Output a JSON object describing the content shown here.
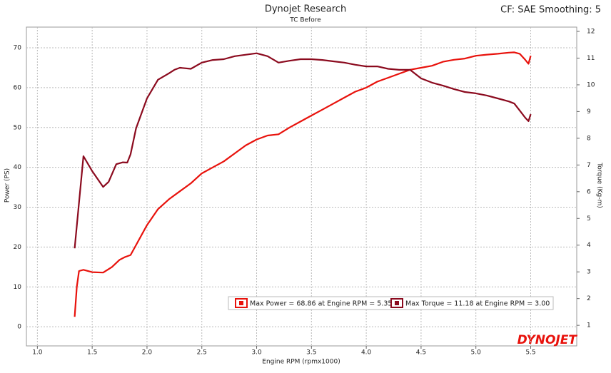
{
  "chart_data": {
    "type": "line",
    "title": "Dynojet Research",
    "subtitle": "TC Before",
    "corner_note": "CF: SAE Smoothing: 5",
    "logo": "DYNOJET",
    "xlabel": "Engine RPM (rpmx1000)",
    "ylabel": "Power (PS)",
    "y2label": "Torque (Kg-m)",
    "xlim": [
      0.9,
      5.92
    ],
    "ylim": [
      -4.8,
      75.2
    ],
    "y2lim": [
      0.23,
      12.16
    ],
    "xticks": [
      {
        "value": 1,
        "label": "1.0"
      },
      1.5,
      {
        "value": 2,
        "label": "2.0"
      },
      2.5,
      {
        "value": 3,
        "label": "3.0"
      },
      3.5,
      {
        "value": 4,
        "label": "4.0"
      },
      4.5,
      {
        "value": 5,
        "label": "5.0"
      },
      5.5
    ],
    "yticks": [
      0,
      10,
      20,
      30,
      40,
      50,
      60,
      70
    ],
    "y2ticks": [
      1,
      2,
      3,
      4,
      5,
      6,
      7,
      8,
      9,
      10,
      11,
      12
    ],
    "grid": true,
    "series": [
      {
        "name": "Max Power = 68.86 at Engine RPM = 5.35",
        "color": "#e8120c",
        "axis": "y",
        "x": [
          1.34,
          1.36,
          1.38,
          1.42,
          1.5,
          1.6,
          1.68,
          1.75,
          1.8,
          1.85,
          1.9,
          2.0,
          2.1,
          2.2,
          2.3,
          2.4,
          2.5,
          2.6,
          2.7,
          2.8,
          2.9,
          3.0,
          3.1,
          3.2,
          3.3,
          3.4,
          3.5,
          3.6,
          3.7,
          3.8,
          3.9,
          4.0,
          4.1,
          4.2,
          4.3,
          4.4,
          4.5,
          4.6,
          4.7,
          4.8,
          4.9,
          5.0,
          5.1,
          5.2,
          5.3,
          5.35,
          5.4,
          5.45,
          5.48,
          5.5
        ],
        "values": [
          2.5,
          10,
          14,
          14.3,
          13.7,
          13.6,
          15,
          16.8,
          17.5,
          18,
          20.5,
          25.5,
          29.5,
          32,
          34,
          36,
          38.5,
          40,
          41.5,
          43.5,
          45.5,
          47,
          48,
          48.3,
          50,
          51.5,
          53,
          54.5,
          56,
          57.5,
          59,
          60,
          61.5,
          62.5,
          63.5,
          64.5,
          65,
          65.5,
          66.5,
          67,
          67.3,
          68,
          68.3,
          68.5,
          68.8,
          68.86,
          68.5,
          67,
          66,
          68
        ]
      },
      {
        "name": "Max Torque = 11.18 at Engine RPM = 3.00",
        "color": "#8b0a1e",
        "axis": "y2",
        "x": [
          1.34,
          1.42,
          1.5,
          1.6,
          1.65,
          1.72,
          1.78,
          1.82,
          1.85,
          1.9,
          2.0,
          2.1,
          2.2,
          2.25,
          2.3,
          2.4,
          2.5,
          2.6,
          2.7,
          2.8,
          3.0,
          3.1,
          3.2,
          3.3,
          3.4,
          3.5,
          3.6,
          3.7,
          3.8,
          3.9,
          4.0,
          4.1,
          4.2,
          4.3,
          4.4,
          4.5,
          4.6,
          4.7,
          4.8,
          4.9,
          5.0,
          5.1,
          5.2,
          5.3,
          5.35,
          5.4,
          5.45,
          5.48,
          5.5
        ],
        "values": [
          3.88,
          7.33,
          6.77,
          6.18,
          6.37,
          7.03,
          7.1,
          7.09,
          7.4,
          8.37,
          9.49,
          10.19,
          10.43,
          10.56,
          10.64,
          10.6,
          10.83,
          10.93,
          10.96,
          11.07,
          11.18,
          11.07,
          10.83,
          10.9,
          10.96,
          10.96,
          10.93,
          10.88,
          10.83,
          10.75,
          10.69,
          10.69,
          10.6,
          10.56,
          10.56,
          10.24,
          10.08,
          9.97,
          9.84,
          9.73,
          9.68,
          9.6,
          9.49,
          9.38,
          9.3,
          9.04,
          8.77,
          8.64,
          8.9
        ]
      }
    ]
  }
}
